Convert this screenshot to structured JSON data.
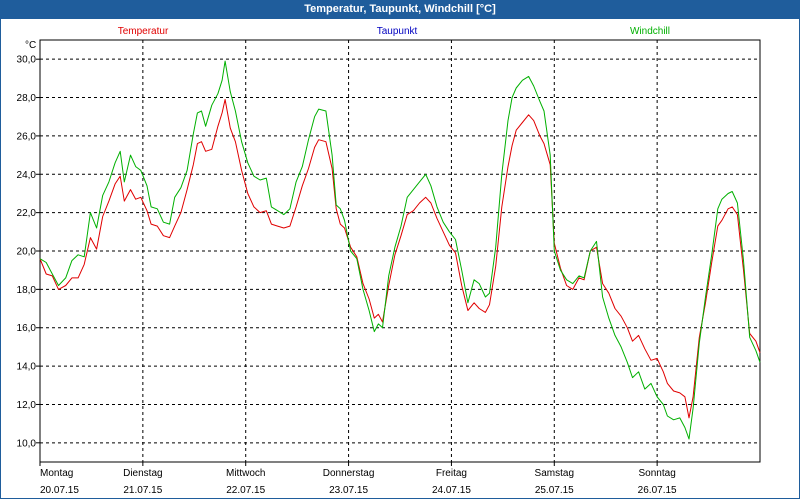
{
  "window": {
    "title": "Temperatur, Taupunkt, Windchill [°C]"
  },
  "chart_data": {
    "type": "line",
    "title": "Temperatur, Taupunkt, Windchill [°C]",
    "ylabel": "°C",
    "ylim": [
      9,
      31
    ],
    "yticks": [
      "30,0",
      "28,0",
      "26,0",
      "24,0",
      "22,0",
      "20,0",
      "18,0",
      "16,0",
      "14,0",
      "12,0",
      "10,0"
    ],
    "ytick_values": [
      30,
      28,
      26,
      24,
      22,
      20,
      18,
      16,
      14,
      12,
      10
    ],
    "grid": true,
    "x_range_days": [
      0,
      7
    ],
    "days": [
      {
        "name": "Montag",
        "date": "20.07.15"
      },
      {
        "name": "Dienstag",
        "date": "21.07.15"
      },
      {
        "name": "Mittwoch",
        "date": "22.07.15"
      },
      {
        "name": "Donnerstag",
        "date": "23.07.15"
      },
      {
        "name": "Freitag",
        "date": "24.07.15"
      },
      {
        "name": "Samstag",
        "date": "25.07.15"
      },
      {
        "name": "Sonntag",
        "date": "26.07.15"
      }
    ],
    "series": [
      {
        "name": "Temperatur",
        "color": "#e00000",
        "points": [
          [
            0.0,
            19.6
          ],
          [
            0.06,
            18.8
          ],
          [
            0.12,
            18.7
          ],
          [
            0.18,
            18.0
          ],
          [
            0.25,
            18.2
          ],
          [
            0.31,
            18.6
          ],
          [
            0.37,
            18.6
          ],
          [
            0.43,
            19.3
          ],
          [
            0.49,
            20.7
          ],
          [
            0.55,
            20.1
          ],
          [
            0.61,
            21.8
          ],
          [
            0.67,
            22.6
          ],
          [
            0.73,
            23.5
          ],
          [
            0.78,
            23.9
          ],
          [
            0.82,
            22.6
          ],
          [
            0.88,
            23.2
          ],
          [
            0.93,
            22.7
          ],
          [
            0.98,
            22.8
          ],
          [
            1.04,
            22.1
          ],
          [
            1.08,
            21.4
          ],
          [
            1.14,
            21.3
          ],
          [
            1.2,
            20.8
          ],
          [
            1.26,
            20.7
          ],
          [
            1.31,
            21.3
          ],
          [
            1.37,
            22.0
          ],
          [
            1.43,
            23.2
          ],
          [
            1.49,
            24.5
          ],
          [
            1.53,
            25.6
          ],
          [
            1.57,
            25.7
          ],
          [
            1.61,
            25.2
          ],
          [
            1.67,
            25.3
          ],
          [
            1.73,
            26.5
          ],
          [
            1.77,
            27.2
          ],
          [
            1.8,
            27.9
          ],
          [
            1.85,
            26.4
          ],
          [
            1.9,
            25.7
          ],
          [
            1.96,
            24.2
          ],
          [
            2.02,
            23.0
          ],
          [
            2.08,
            22.3
          ],
          [
            2.14,
            22.0
          ],
          [
            2.2,
            22.1
          ],
          [
            2.25,
            21.4
          ],
          [
            2.31,
            21.3
          ],
          [
            2.37,
            21.2
          ],
          [
            2.43,
            21.3
          ],
          [
            2.49,
            22.3
          ],
          [
            2.55,
            23.4
          ],
          [
            2.61,
            24.3
          ],
          [
            2.67,
            25.4
          ],
          [
            2.71,
            25.8
          ],
          [
            2.78,
            25.7
          ],
          [
            2.84,
            24.3
          ],
          [
            2.88,
            22.2
          ],
          [
            2.92,
            21.4
          ],
          [
            2.96,
            21.2
          ],
          [
            3.02,
            20.2
          ],
          [
            3.08,
            19.7
          ],
          [
            3.14,
            18.3
          ],
          [
            3.2,
            17.5
          ],
          [
            3.25,
            16.5
          ],
          [
            3.29,
            16.7
          ],
          [
            3.33,
            16.3
          ],
          [
            3.39,
            18.2
          ],
          [
            3.45,
            19.8
          ],
          [
            3.51,
            20.8
          ],
          [
            3.57,
            21.9
          ],
          [
            3.63,
            22.1
          ],
          [
            3.69,
            22.5
          ],
          [
            3.75,
            22.8
          ],
          [
            3.8,
            22.5
          ],
          [
            3.86,
            21.7
          ],
          [
            3.92,
            21.0
          ],
          [
            3.98,
            20.3
          ],
          [
            4.04,
            19.9
          ],
          [
            4.1,
            18.2
          ],
          [
            4.16,
            16.9
          ],
          [
            4.22,
            17.3
          ],
          [
            4.27,
            17.0
          ],
          [
            4.33,
            16.8
          ],
          [
            4.37,
            17.2
          ],
          [
            4.43,
            19.2
          ],
          [
            4.49,
            22.3
          ],
          [
            4.55,
            24.4
          ],
          [
            4.59,
            25.5
          ],
          [
            4.63,
            26.3
          ],
          [
            4.69,
            26.7
          ],
          [
            4.75,
            27.1
          ],
          [
            4.8,
            26.8
          ],
          [
            4.86,
            26.0
          ],
          [
            4.9,
            25.6
          ],
          [
            4.96,
            24.5
          ],
          [
            5.0,
            20.4
          ],
          [
            5.06,
            19.1
          ],
          [
            5.12,
            18.2
          ],
          [
            5.18,
            18.0
          ],
          [
            5.24,
            18.6
          ],
          [
            5.29,
            18.5
          ],
          [
            5.35,
            20.0
          ],
          [
            5.41,
            20.2
          ],
          [
            5.47,
            18.3
          ],
          [
            5.53,
            17.8
          ],
          [
            5.59,
            17.0
          ],
          [
            5.65,
            16.6
          ],
          [
            5.71,
            16.0
          ],
          [
            5.76,
            15.3
          ],
          [
            5.82,
            15.6
          ],
          [
            5.88,
            14.9
          ],
          [
            5.94,
            14.3
          ],
          [
            6.0,
            14.4
          ],
          [
            6.06,
            13.7
          ],
          [
            6.1,
            13.1
          ],
          [
            6.16,
            12.7
          ],
          [
            6.22,
            12.6
          ],
          [
            6.27,
            12.4
          ],
          [
            6.31,
            11.3
          ],
          [
            6.35,
            12.4
          ],
          [
            6.41,
            15.5
          ],
          [
            6.47,
            17.3
          ],
          [
            6.53,
            19.4
          ],
          [
            6.59,
            21.3
          ],
          [
            6.63,
            21.6
          ],
          [
            6.69,
            22.2
          ],
          [
            6.73,
            22.3
          ],
          [
            6.78,
            21.9
          ],
          [
            6.84,
            19.0
          ],
          [
            6.9,
            15.7
          ],
          [
            6.96,
            15.3
          ],
          [
            7.0,
            14.7
          ]
        ]
      },
      {
        "name": "Taupunkt",
        "color": "#0000c0",
        "points": []
      },
      {
        "name": "Windchill",
        "color": "#00b000",
        "points": [
          [
            0.0,
            19.6
          ],
          [
            0.06,
            19.4
          ],
          [
            0.12,
            18.8
          ],
          [
            0.18,
            18.2
          ],
          [
            0.25,
            18.6
          ],
          [
            0.31,
            19.5
          ],
          [
            0.37,
            19.8
          ],
          [
            0.43,
            19.7
          ],
          [
            0.49,
            22.0
          ],
          [
            0.55,
            21.2
          ],
          [
            0.61,
            22.9
          ],
          [
            0.67,
            23.6
          ],
          [
            0.73,
            24.6
          ],
          [
            0.78,
            25.2
          ],
          [
            0.82,
            23.6
          ],
          [
            0.88,
            25.0
          ],
          [
            0.93,
            24.4
          ],
          [
            0.98,
            24.2
          ],
          [
            1.04,
            23.4
          ],
          [
            1.08,
            22.3
          ],
          [
            1.14,
            22.2
          ],
          [
            1.2,
            21.5
          ],
          [
            1.26,
            21.4
          ],
          [
            1.31,
            22.8
          ],
          [
            1.37,
            23.3
          ],
          [
            1.43,
            24.2
          ],
          [
            1.49,
            26.1
          ],
          [
            1.53,
            27.2
          ],
          [
            1.57,
            27.3
          ],
          [
            1.61,
            26.5
          ],
          [
            1.67,
            27.6
          ],
          [
            1.73,
            28.2
          ],
          [
            1.77,
            28.9
          ],
          [
            1.8,
            29.9
          ],
          [
            1.85,
            28.3
          ],
          [
            1.9,
            27.3
          ],
          [
            1.96,
            25.7
          ],
          [
            2.02,
            24.6
          ],
          [
            2.08,
            23.9
          ],
          [
            2.14,
            23.7
          ],
          [
            2.2,
            23.8
          ],
          [
            2.25,
            22.3
          ],
          [
            2.31,
            22.1
          ],
          [
            2.37,
            21.9
          ],
          [
            2.43,
            22.2
          ],
          [
            2.49,
            23.6
          ],
          [
            2.55,
            24.4
          ],
          [
            2.61,
            25.8
          ],
          [
            2.67,
            27.0
          ],
          [
            2.71,
            27.4
          ],
          [
            2.78,
            27.3
          ],
          [
            2.84,
            25.0
          ],
          [
            2.88,
            22.4
          ],
          [
            2.92,
            22.2
          ],
          [
            2.96,
            21.6
          ],
          [
            3.02,
            20.0
          ],
          [
            3.08,
            19.6
          ],
          [
            3.14,
            18.0
          ],
          [
            3.2,
            16.9
          ],
          [
            3.25,
            15.8
          ],
          [
            3.29,
            16.2
          ],
          [
            3.33,
            16.0
          ],
          [
            3.39,
            18.7
          ],
          [
            3.45,
            20.2
          ],
          [
            3.51,
            21.3
          ],
          [
            3.57,
            22.8
          ],
          [
            3.63,
            23.2
          ],
          [
            3.69,
            23.6
          ],
          [
            3.75,
            24.0
          ],
          [
            3.8,
            23.4
          ],
          [
            3.86,
            22.3
          ],
          [
            3.92,
            21.5
          ],
          [
            3.98,
            21.0
          ],
          [
            4.04,
            20.6
          ],
          [
            4.1,
            19.0
          ],
          [
            4.16,
            17.3
          ],
          [
            4.22,
            18.5
          ],
          [
            4.27,
            18.3
          ],
          [
            4.33,
            17.6
          ],
          [
            4.37,
            17.8
          ],
          [
            4.43,
            20.2
          ],
          [
            4.49,
            24.0
          ],
          [
            4.55,
            26.8
          ],
          [
            4.59,
            28.0
          ],
          [
            4.63,
            28.5
          ],
          [
            4.69,
            28.9
          ],
          [
            4.75,
            29.1
          ],
          [
            4.8,
            28.6
          ],
          [
            4.86,
            27.8
          ],
          [
            4.9,
            27.3
          ],
          [
            4.96,
            25.0
          ],
          [
            5.0,
            20.0
          ],
          [
            5.06,
            19.0
          ],
          [
            5.12,
            18.5
          ],
          [
            5.18,
            18.3
          ],
          [
            5.24,
            18.7
          ],
          [
            5.29,
            18.6
          ],
          [
            5.35,
            20.0
          ],
          [
            5.41,
            20.5
          ],
          [
            5.47,
            17.6
          ],
          [
            5.53,
            16.5
          ],
          [
            5.59,
            15.6
          ],
          [
            5.65,
            15.0
          ],
          [
            5.71,
            14.2
          ],
          [
            5.76,
            13.4
          ],
          [
            5.82,
            13.7
          ],
          [
            5.88,
            12.8
          ],
          [
            5.94,
            13.1
          ],
          [
            6.0,
            12.4
          ],
          [
            6.06,
            12.0
          ],
          [
            6.1,
            11.4
          ],
          [
            6.16,
            11.2
          ],
          [
            6.22,
            11.3
          ],
          [
            6.27,
            10.8
          ],
          [
            6.31,
            10.2
          ],
          [
            6.35,
            11.8
          ],
          [
            6.41,
            15.2
          ],
          [
            6.47,
            17.6
          ],
          [
            6.53,
            19.8
          ],
          [
            6.59,
            22.2
          ],
          [
            6.63,
            22.7
          ],
          [
            6.69,
            23.0
          ],
          [
            6.73,
            23.1
          ],
          [
            6.78,
            22.5
          ],
          [
            6.84,
            19.5
          ],
          [
            6.9,
            15.5
          ],
          [
            6.96,
            14.8
          ],
          [
            7.0,
            14.2
          ]
        ]
      }
    ]
  }
}
